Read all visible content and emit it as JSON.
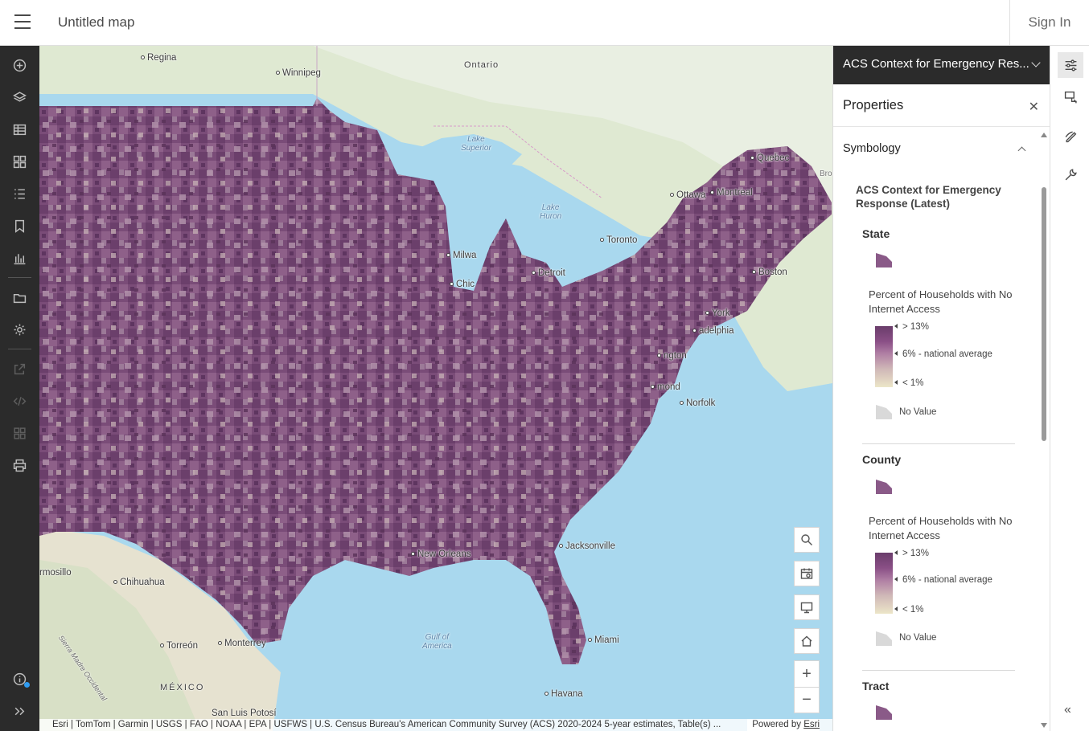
{
  "header": {
    "title": "Untitled map",
    "sign_in": "Sign In"
  },
  "left_toolbar": [
    "add-icon",
    "layers-icon",
    "table-icon",
    "basemap-icon",
    "legend-icon",
    "bookmark-icon",
    "chart-icon",
    "folder-icon",
    "settings-icon",
    "share-icon",
    "embed-icon",
    "apps-icon",
    "print-icon",
    "info-icon",
    "expand-icon"
  ],
  "map": {
    "places": {
      "regina": "Regina",
      "winnipeg": "Winnipeg",
      "ontario": "Ontario",
      "lake_superior": "Lake\nSuperior",
      "lake_huron": "Lake\nHuron",
      "quebec": "Quebec",
      "ottawa": "Ottawa",
      "montreal": "Montreal",
      "toronto": "Toronto",
      "milwaukee": "Milwa",
      "detroit": "Detroit",
      "chicago": "Chic",
      "boston": "Boston",
      "newyork": "York",
      "philadelphia": "adelphia",
      "washington": "ngton",
      "richmond": "mond",
      "norfolk": "Norfolk",
      "jacksonville": "Jacksonville",
      "neworleans": "New Orleans",
      "miami": "Miami",
      "havana": "Havana",
      "gulf": "Gulf of\nAmerica",
      "hermosillo": "rmosillo",
      "chihuahua": "Chihuahua",
      "torreon": "Torreón",
      "monterrey": "Monterrey",
      "mexico": "MÉXICO",
      "sanluis": "San Luis Potosí",
      "sierra": "Sierra Madre Occidental",
      "br": "Bro"
    },
    "attribution": "Esri | TomTom | Garmin | USGS | FAO | NOAA | EPA | USFWS | U.S. Census Bureau's American Community Survey (ACS) 2020-2024 5-year estimates, Table(s) ...",
    "powered_by": "Powered by",
    "powered_link": "Esri",
    "zoom_in": "+",
    "zoom_out": "−"
  },
  "panel": {
    "layer_name": "ACS Context for Emergency Res...",
    "properties_title": "Properties",
    "close": "✕",
    "symbology": "Symbology",
    "legend_title": "ACS Context for Emergency Response (Latest)",
    "groups": [
      {
        "name": "State",
        "field": "Percent of Households with No Internet Access",
        "high": "> 13%",
        "mid": "6% - national average",
        "low": "< 1%",
        "no_value": "No Value"
      },
      {
        "name": "County",
        "field": "Percent of Households with No Internet Access",
        "high": "> 13%",
        "mid": "6% - national average",
        "low": "< 1%",
        "no_value": "No Value"
      },
      {
        "name": "Tract"
      }
    ]
  },
  "colors": {
    "ramp_high": "#6a3d6b",
    "ramp_mid": "#b07fa4",
    "ramp_low": "#ece6c8",
    "no_value": "#d9d9d9",
    "toolbar_bg": "#2b2b2b"
  }
}
